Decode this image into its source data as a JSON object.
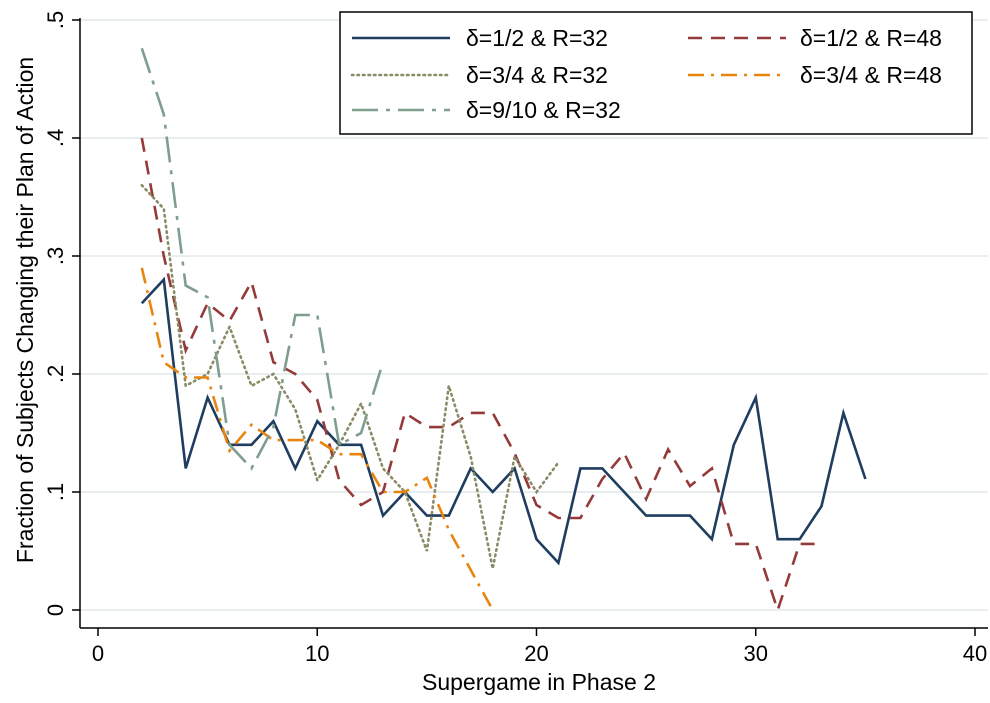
{
  "chart_data": {
    "type": "line",
    "xlabel": "Supergame in Phase 2",
    "ylabel": "Fraction of Subjects Changing their Plan of Action",
    "xlim": [
      0,
      40
    ],
    "ylim": [
      0,
      0.5
    ],
    "xticks": [
      0,
      10,
      20,
      30,
      40
    ],
    "xtick_labels": [
      "0",
      "10",
      "20",
      "30",
      "40"
    ],
    "yticks": [
      0,
      0.1,
      0.2,
      0.3,
      0.4,
      0.5
    ],
    "ytick_labels": [
      "0",
      ".1",
      ".2",
      ".3",
      ".4",
      ".5"
    ],
    "grid": "horizontal",
    "legend_position": "top-right",
    "series": [
      {
        "name": "δ=1/2 & R=32",
        "color": "#1f3d5f",
        "dash": "solid",
        "x": [
          2,
          3,
          4,
          5,
          6,
          7,
          8,
          9,
          10,
          11,
          12,
          13,
          14,
          15,
          16,
          17,
          18,
          19,
          20,
          21,
          22,
          23,
          24,
          25,
          26,
          27,
          28,
          29,
          30,
          31,
          32,
          33,
          34,
          35
        ],
        "y": [
          0.26,
          0.28,
          0.12,
          0.18,
          0.14,
          0.14,
          0.16,
          0.12,
          0.16,
          0.14,
          0.14,
          0.08,
          0.1,
          0.08,
          0.08,
          0.12,
          0.1,
          0.12,
          0.06,
          0.04,
          0.12,
          0.12,
          0.1,
          0.08,
          0.08,
          0.08,
          0.06,
          0.14,
          0.18,
          0.06,
          0.06,
          0.088,
          0.167,
          0.111
        ]
      },
      {
        "name": "δ=1/2 & R=48",
        "color": "#953a3a",
        "dash": "dash",
        "x": [
          2,
          3,
          4,
          5,
          6,
          7,
          8,
          9,
          10,
          11,
          12,
          13,
          14,
          15,
          16,
          17,
          18,
          19,
          20,
          21,
          22,
          23,
          24,
          25,
          26,
          27,
          28,
          29,
          30,
          31,
          32,
          33
        ],
        "y": [
          0.4,
          0.3,
          0.22,
          0.26,
          0.245,
          0.278,
          0.21,
          0.2,
          0.178,
          0.11,
          0.089,
          0.1,
          0.167,
          0.155,
          0.155,
          0.167,
          0.167,
          0.133,
          0.089,
          0.078,
          0.078,
          0.111,
          0.133,
          0.094,
          0.136,
          0.105,
          0.12,
          0.056,
          0.056,
          0.0,
          0.056,
          0.056
        ]
      },
      {
        "name": "δ=3/4 & R=32",
        "color": "#8a8a66",
        "dash": "dot",
        "x": [
          2,
          3,
          4,
          5,
          6,
          7,
          8,
          9,
          10,
          11,
          12,
          13,
          14,
          15,
          16,
          17,
          18,
          19,
          20,
          21
        ],
        "y": [
          0.36,
          0.34,
          0.19,
          0.2,
          0.24,
          0.19,
          0.2,
          0.17,
          0.11,
          0.14,
          0.175,
          0.12,
          0.1,
          0.05,
          0.19,
          0.13,
          0.035,
          0.13,
          0.1,
          0.125
        ]
      },
      {
        "name": "δ=3/4 & R=48",
        "color": "#e8850f",
        "dash": "dashdot",
        "x": [
          2,
          3,
          4,
          5,
          6,
          7,
          8,
          9,
          10,
          11,
          12,
          13,
          14,
          15,
          16,
          17,
          18
        ],
        "y": [
          0.29,
          0.21,
          0.197,
          0.197,
          0.135,
          0.157,
          0.144,
          0.144,
          0.144,
          0.132,
          0.132,
          0.1,
          0.1,
          0.112,
          0.068,
          0.034,
          0.0
        ]
      },
      {
        "name": "δ=9/10 & R=32",
        "color": "#7f9e8e",
        "dash": "longdashdot",
        "x": [
          2,
          3,
          4,
          5,
          6,
          7,
          8,
          9,
          10,
          11,
          12,
          13
        ],
        "y": [
          0.476,
          0.42,
          0.275,
          0.265,
          0.14,
          0.12,
          0.155,
          0.25,
          0.25,
          0.14,
          0.15,
          0.21
        ]
      }
    ]
  }
}
